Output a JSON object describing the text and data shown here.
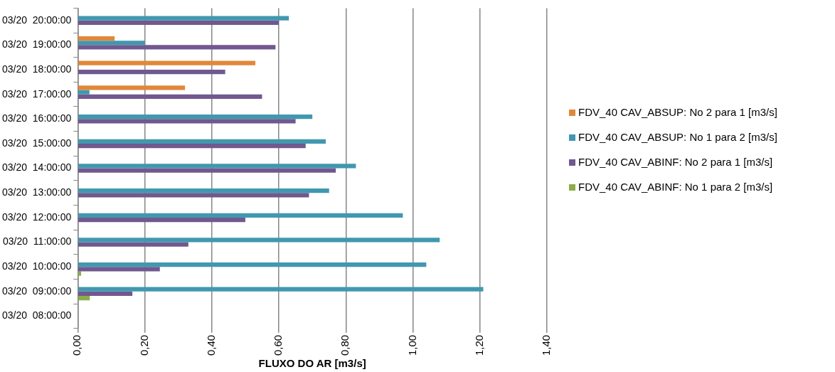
{
  "chart_data": {
    "type": "bar",
    "orientation": "horizontal",
    "xlabel": "FLUXO DO AR [m3/s]",
    "categories": [
      "03/20  20:00:00",
      "03/20  19:00:00",
      "03/20  18:00:00",
      "03/20  17:00:00",
      "03/20  16:00:00",
      "03/20  15:00:00",
      "03/20  14:00:00",
      "03/20  13:00:00",
      "03/20  12:00:00",
      "03/20  11:00:00",
      "03/20  10:00:00",
      "03/20  09:00:00",
      "03/20  08:00:00"
    ],
    "series": [
      {
        "name": "FDV_40 CAV_ABSUP:  No 2 para 1 [m3/s]",
        "color": "#e0883a",
        "values": [
          null,
          0.11,
          0.53,
          0.32,
          null,
          null,
          null,
          null,
          null,
          null,
          null,
          null,
          null
        ]
      },
      {
        "name": "FDV_40 CAV_ABSUP: No 1 para 2 [m3/s]",
        "color": "#4198af",
        "values": [
          0.63,
          0.2,
          null,
          0.035,
          0.7,
          0.74,
          0.83,
          0.75,
          0.97,
          1.08,
          1.04,
          1.21,
          null
        ]
      },
      {
        "name": "FDV_40 CAV_ABINF: No 2 para 1 [m3/s]",
        "color": "#71588f",
        "values": [
          0.6,
          0.59,
          0.44,
          0.55,
          0.65,
          0.68,
          0.77,
          0.69,
          0.5,
          0.33,
          0.245,
          0.163,
          null
        ]
      },
      {
        "name": "FDV_40 CAV_ABINF: No 1 para 2 [m3/s]",
        "color": "#8cad4a",
        "values": [
          null,
          null,
          null,
          null,
          null,
          null,
          null,
          null,
          null,
          null,
          0.01,
          0.036,
          null
        ]
      }
    ],
    "xlim": [
      0,
      1.4
    ],
    "xticks": [
      {
        "value": 0,
        "label": "0,00"
      },
      {
        "value": 0.2,
        "label": "0,20"
      },
      {
        "value": 0.4,
        "label": "0,40"
      },
      {
        "value": 0.6,
        "label": "0,60"
      },
      {
        "value": 0.8,
        "label": "0,80"
      },
      {
        "value": 1.0,
        "label": "1,00"
      },
      {
        "value": 1.2,
        "label": "1,20"
      },
      {
        "value": 1.4,
        "label": "1,40"
      }
    ],
    "grid": "x",
    "legend": "right"
  }
}
